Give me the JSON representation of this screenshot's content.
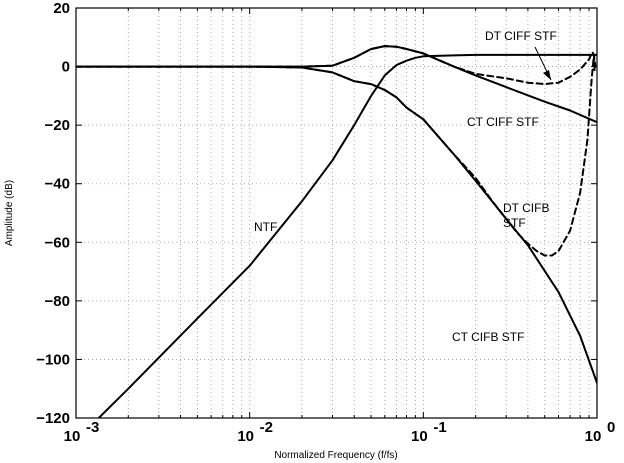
{
  "chart_data": {
    "type": "line",
    "title": "",
    "xlabel": "Normalized Frequency (f/fs)",
    "ylabel": "Amplitude (dB)",
    "xscale": "log",
    "xlim": [
      0.001,
      1
    ],
    "ylim": [
      -120,
      20
    ],
    "x_ticks": [
      {
        "value": 0.001,
        "base": "10",
        "exp": "-3"
      },
      {
        "value": 0.01,
        "base": "10",
        "exp": "-2"
      },
      {
        "value": 0.1,
        "base": "10",
        "exp": "-1"
      },
      {
        "value": 1,
        "base": "10",
        "exp": "0"
      }
    ],
    "y_ticks": [
      {
        "value": 20,
        "label": "20"
      },
      {
        "value": 0,
        "label": "0"
      },
      {
        "value": -20,
        "label": "−20"
      },
      {
        "value": -40,
        "label": "−40"
      },
      {
        "value": -60,
        "label": "−60"
      },
      {
        "value": -80,
        "label": "−80"
      },
      {
        "value": -100,
        "label": "−100"
      },
      {
        "value": -120,
        "label": "−120"
      }
    ],
    "grid": true,
    "legend": "none",
    "series": [
      {
        "key": "ntf",
        "style": "solid",
        "color": "#000000",
        "x": [
          0.0013,
          0.002,
          0.005,
          0.01,
          0.02,
          0.03,
          0.04,
          0.05,
          0.06,
          0.07,
          0.08,
          0.09,
          0.1,
          0.15,
          0.2,
          0.4,
          0.7,
          0.92,
          0.95,
          0.97,
          1.0
        ],
        "y": [
          -121,
          -110,
          -86,
          -68,
          -46,
          -32,
          -20,
          -10,
          -3,
          0.5,
          2,
          3,
          3.5,
          3.8,
          4,
          4,
          4,
          4,
          4,
          4,
          4
        ]
      },
      {
        "key": "ct_ciff_stf",
        "style": "solid",
        "color": "#000000",
        "x": [
          0.001,
          0.01,
          0.02,
          0.03,
          0.04,
          0.05,
          0.06,
          0.07,
          0.08,
          0.1,
          0.15,
          0.2,
          0.3,
          0.5,
          0.7,
          1.0
        ],
        "y": [
          0,
          0,
          0,
          0.3,
          3,
          6,
          7,
          6.8,
          6,
          4.5,
          0,
          -3,
          -7,
          -12,
          -15,
          -19
        ]
      },
      {
        "key": "dt_ciff_stf",
        "style": "dashed",
        "color": "#000000",
        "x": [
          0.001,
          0.01,
          0.02,
          0.03,
          0.04,
          0.05,
          0.06,
          0.07,
          0.08,
          0.1,
          0.15,
          0.2,
          0.3,
          0.4,
          0.5,
          0.6,
          0.7,
          0.8,
          0.9,
          0.94,
          0.96,
          0.98
        ],
        "y": [
          0,
          0,
          0,
          0.3,
          3,
          6,
          7,
          6.8,
          6,
          4.5,
          0,
          -2.5,
          -4,
          -5.5,
          -6,
          -5.5,
          -3.5,
          -1,
          2.5,
          5,
          4,
          0
        ]
      },
      {
        "key": "ct_cifb_stf",
        "style": "solid",
        "color": "#000000",
        "x": [
          0.001,
          0.01,
          0.02,
          0.03,
          0.04,
          0.05,
          0.06,
          0.07,
          0.08,
          0.1,
          0.15,
          0.2,
          0.3,
          0.4,
          0.6,
          0.8,
          1.0
        ],
        "y": [
          0,
          0,
          -0.3,
          -2,
          -5,
          -6,
          -8,
          -10.5,
          -14,
          -18,
          -30,
          -39,
          -52,
          -61,
          -77,
          -92,
          -108
        ]
      },
      {
        "key": "dt_cifb_stf",
        "style": "dashed",
        "color": "#000000",
        "x": [
          0.001,
          0.01,
          0.02,
          0.03,
          0.04,
          0.05,
          0.06,
          0.07,
          0.08,
          0.1,
          0.15,
          0.2,
          0.25,
          0.3,
          0.35,
          0.4,
          0.45,
          0.5,
          0.55,
          0.6,
          0.7,
          0.8,
          0.88,
          0.93,
          0.96,
          0.97
        ],
        "y": [
          0,
          0,
          -0.3,
          -2,
          -5,
          -6,
          -8,
          -10.5,
          -14,
          -18,
          -30,
          -38,
          -46,
          -52,
          -57,
          -60.5,
          -63,
          -64.5,
          -64.5,
          -63,
          -56,
          -43,
          -25,
          -5,
          4,
          -2
        ]
      }
    ],
    "annotations": [
      {
        "key": "ntf",
        "text": "NTF"
      },
      {
        "key": "ct_ciff",
        "text": "CT CIFF STF"
      },
      {
        "key": "dt_ciff",
        "text": "DT CIFF STF"
      },
      {
        "key": "dt_cifb_1",
        "text": "DT CIFB"
      },
      {
        "key": "dt_cifb_2",
        "text": "STF"
      },
      {
        "key": "ct_cifb",
        "text": "CT CIFB STF"
      }
    ]
  }
}
